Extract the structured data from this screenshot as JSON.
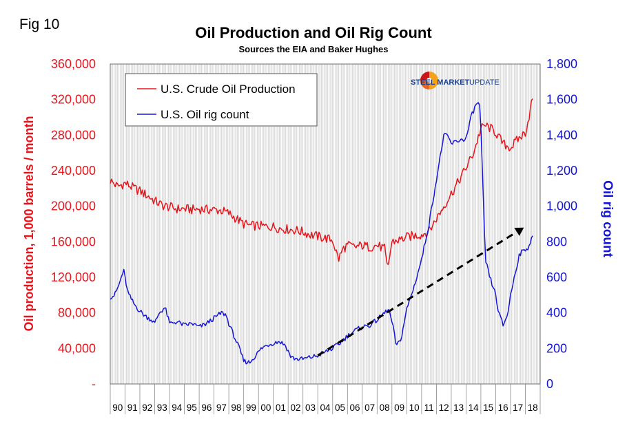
{
  "figure": {
    "fig_label": "Fig 10",
    "logo": {
      "brand": "STEEL MARKET",
      "suffix": "UPDATE"
    }
  },
  "chart_data": {
    "type": "line",
    "title": "Oil Production and Oil Rig Count",
    "subtitle": "Sources the EIA and Baker Hughes",
    "xlabel": "",
    "ylabel_left": "Oil production, 1,000 barrels / month",
    "ylabel_right": "Oil rig count",
    "x_range": [
      1990.0,
      2019.0
    ],
    "x_tick_labels": [
      "90",
      "91",
      "92",
      "93",
      "94",
      "95",
      "96",
      "97",
      "98",
      "99",
      "00",
      "01",
      "02",
      "03",
      "04",
      "05",
      "06",
      "07",
      "08",
      "09",
      "10",
      "11",
      "12",
      "13",
      "14",
      "15",
      "16",
      "17",
      "18"
    ],
    "y_left_range": [
      0,
      360000
    ],
    "y_left_ticks": [
      0,
      40000,
      80000,
      120000,
      160000,
      200000,
      240000,
      280000,
      320000,
      360000
    ],
    "y_left_tick_labels": [
      "-",
      "40,000",
      "80,000",
      "120,000",
      "160,000",
      "200,000",
      "240,000",
      "280,000",
      "320,000",
      "360,000"
    ],
    "y_right_range": [
      0,
      1800
    ],
    "y_right_ticks": [
      0,
      200,
      400,
      600,
      800,
      1000,
      1200,
      1400,
      1600,
      1800
    ],
    "y_right_tick_labels": [
      "0",
      "200",
      "400",
      "600",
      "800",
      "1,000",
      "1,200",
      "1,400",
      "1,600",
      "1,800"
    ],
    "grid": "vertical-monthly",
    "legend_position": "top-left",
    "series": [
      {
        "name": "U.S. Crude Oil Production",
        "axis": "left",
        "color": "#e8141b",
        "x": [
          1990.0,
          1990.5,
          1991.0,
          1991.5,
          1992.0,
          1992.5,
          1993.0,
          1993.5,
          1994.0,
          1994.5,
          1995.0,
          1995.5,
          1996.0,
          1996.5,
          1997.0,
          1997.5,
          1998.0,
          1998.5,
          1999.0,
          1999.5,
          2000.0,
          2000.5,
          2001.0,
          2001.5,
          2002.0,
          2002.5,
          2003.0,
          2003.5,
          2004.0,
          2004.5,
          2005.0,
          2005.4,
          2005.7,
          2006.0,
          2006.5,
          2007.0,
          2007.5,
          2008.0,
          2008.5,
          2008.7,
          2009.0,
          2009.5,
          2010.0,
          2010.5,
          2011.0,
          2011.5,
          2012.0,
          2012.5,
          2013.0,
          2013.5,
          2014.0,
          2014.5,
          2015.0,
          2015.3,
          2015.6,
          2016.0,
          2016.5,
          2017.0,
          2017.5,
          2018.0,
          2018.3,
          2018.5
        ],
        "values": [
          229000,
          222000,
          226000,
          221000,
          217000,
          212000,
          206000,
          201000,
          199000,
          197000,
          197000,
          196000,
          197000,
          196000,
          196000,
          195000,
          192000,
          186000,
          180000,
          178000,
          178000,
          177000,
          177000,
          175000,
          174000,
          173000,
          171000,
          168000,
          166000,
          164000,
          162000,
          140000,
          152000,
          156000,
          154000,
          156000,
          154000,
          156000,
          152000,
          128000,
          160000,
          162000,
          165000,
          167000,
          168000,
          172000,
          186000,
          200000,
          214000,
          228000,
          243000,
          260000,
          287000,
          291000,
          288000,
          283000,
          270000,
          266000,
          275000,
          283000,
          305000,
          323000
        ]
      },
      {
        "name": "U.S. Oil rig count",
        "axis": "right",
        "color": "#1515d6",
        "x": [
          1990.0,
          1990.3,
          1990.6,
          1990.9,
          1991.2,
          1991.6,
          1992.0,
          1992.4,
          1992.8,
          1993.0,
          1993.3,
          1993.7,
          1994.0,
          1994.5,
          1995.0,
          1995.5,
          1996.0,
          1996.5,
          1997.0,
          1997.5,
          1997.8,
          1998.0,
          1998.3,
          1998.7,
          1999.0,
          1999.4,
          1999.8,
          2000.2,
          2000.6,
          2001.0,
          2001.4,
          2001.8,
          2002.2,
          2002.6,
          2003.0,
          2003.5,
          2004.0,
          2004.5,
          2005.0,
          2005.5,
          2006.0,
          2006.5,
          2007.0,
          2007.5,
          2008.0,
          2008.5,
          2008.8,
          2009.1,
          2009.3,
          2009.6,
          2010.0,
          2010.5,
          2011.0,
          2011.5,
          2012.0,
          2012.5,
          2012.8,
          2013.0,
          2013.5,
          2014.0,
          2014.4,
          2014.8,
          2014.95,
          2015.1,
          2015.3,
          2015.6,
          2016.0,
          2016.2,
          2016.5,
          2016.8,
          2017.0,
          2017.3,
          2017.6,
          2017.9,
          2018.2,
          2018.5
        ],
        "values": [
          490,
          500,
          560,
          640,
          510,
          450,
          410,
          380,
          360,
          340,
          400,
          430,
          340,
          350,
          330,
          340,
          320,
          340,
          370,
          400,
          390,
          340,
          280,
          200,
          130,
          120,
          160,
          200,
          220,
          230,
          240,
          220,
          150,
          140,
          140,
          150,
          160,
          180,
          200,
          230,
          270,
          300,
          320,
          330,
          360,
          400,
          420,
          310,
          210,
          250,
          420,
          550,
          700,
          900,
          1150,
          1400,
          1390,
          1350,
          1370,
          1380,
          1520,
          1590,
          1550,
          1200,
          700,
          600,
          500,
          400,
          330,
          390,
          500,
          620,
          730,
          750,
          770,
          830
        ]
      }
    ],
    "annotations": [
      {
        "type": "trend-arrow",
        "style": "dashed",
        "axis": "right",
        "x": [
          2004.0,
          2017.9
        ],
        "values": [
          160,
          880
        ]
      }
    ]
  }
}
